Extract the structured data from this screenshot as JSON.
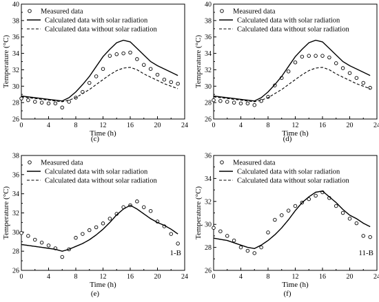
{
  "legend_labels": {
    "measured": "Measured data",
    "with_solar": "Calculated data with solar radiation",
    "without_solar": "Calculated data without solar radiation"
  },
  "chart_data": [
    {
      "type": "scatter+line",
      "panel_label": "(c)",
      "corner_label": "",
      "xlabel": "Time (h)",
      "ylabel": "Temperature (°C)",
      "xlim": [
        0,
        24
      ],
      "ylim": [
        26,
        40
      ],
      "xticks": [
        0,
        4,
        8,
        12,
        16,
        20,
        24
      ],
      "yticks": [
        26,
        28,
        30,
        32,
        34,
        36,
        38,
        40
      ],
      "legend_position": "top-left",
      "series": [
        {
          "name": "Measured data",
          "style": "circle",
          "x": [
            0,
            1,
            2,
            3,
            4,
            5,
            6,
            7,
            8,
            9,
            10,
            11,
            12,
            13,
            14,
            15,
            16,
            17,
            18,
            19,
            20,
            21,
            22,
            23
          ],
          "y": [
            28.5,
            28.3,
            28.1,
            28.0,
            27.9,
            27.9,
            27.4,
            28.1,
            28.6,
            29.3,
            30.4,
            31.2,
            32.1,
            33.7,
            33.9,
            34.0,
            34.1,
            33.3,
            32.6,
            32.1,
            31.4,
            30.8,
            30.5,
            30.3
          ]
        },
        {
          "name": "Calculated data with solar radiation",
          "style": "solid",
          "x": [
            0,
            1,
            2,
            3,
            4,
            5,
            6,
            7,
            8,
            9,
            10,
            11,
            12,
            13,
            14,
            15,
            16,
            17,
            18,
            19,
            20,
            21,
            22,
            23
          ],
          "y": [
            28.8,
            28.7,
            28.6,
            28.5,
            28.4,
            28.3,
            28.2,
            28.6,
            29.3,
            30.2,
            31.2,
            32.4,
            33.6,
            34.5,
            35.3,
            35.6,
            35.4,
            34.6,
            33.8,
            33.0,
            32.5,
            32.1,
            31.7,
            31.3
          ]
        },
        {
          "name": "Calculated data without solar radiation",
          "style": "dashed",
          "x": [
            0,
            1,
            2,
            3,
            4,
            5,
            6,
            7,
            8,
            9,
            10,
            11,
            12,
            13,
            14,
            15,
            16,
            17,
            18,
            19,
            20,
            21,
            22,
            23
          ],
          "y": [
            28.7,
            28.6,
            28.5,
            28.4,
            28.3,
            28.2,
            28.1,
            28.3,
            28.6,
            29.1,
            29.6,
            30.2,
            30.8,
            31.4,
            31.9,
            32.2,
            32.3,
            32.0,
            31.5,
            31.1,
            30.7,
            30.3,
            30.0,
            29.7
          ]
        }
      ]
    },
    {
      "type": "scatter+line",
      "panel_label": "(d)",
      "corner_label": "",
      "xlabel": "Time (h)",
      "ylabel": "Temperature (°C)",
      "xlim": [
        0,
        24
      ],
      "ylim": [
        26,
        40
      ],
      "xticks": [
        0,
        4,
        8,
        12,
        16,
        20,
        24
      ],
      "yticks": [
        26,
        28,
        30,
        32,
        34,
        36,
        38,
        40
      ],
      "legend_position": "top-left",
      "series": [
        {
          "name": "Measured data",
          "style": "circle",
          "x": [
            0,
            1,
            2,
            3,
            4,
            5,
            6,
            7,
            8,
            9,
            10,
            11,
            12,
            13,
            14,
            15,
            16,
            17,
            18,
            19,
            20,
            21,
            22,
            23
          ],
          "y": [
            28.3,
            28.2,
            28.1,
            28.0,
            27.9,
            27.9,
            27.7,
            28.2,
            28.7,
            30.1,
            31.0,
            31.8,
            32.9,
            33.6,
            33.7,
            33.7,
            33.7,
            33.5,
            32.8,
            32.2,
            31.6,
            31.0,
            30.4,
            29.8
          ]
        },
        {
          "name": "Calculated data with solar radiation",
          "style": "solid",
          "x": [
            0,
            1,
            2,
            3,
            4,
            5,
            6,
            7,
            8,
            9,
            10,
            11,
            12,
            13,
            14,
            15,
            16,
            17,
            18,
            19,
            20,
            21,
            22,
            23
          ],
          "y": [
            28.8,
            28.7,
            28.6,
            28.5,
            28.4,
            28.3,
            28.2,
            28.6,
            29.3,
            30.2,
            31.2,
            32.4,
            33.6,
            34.5,
            35.3,
            35.6,
            35.4,
            34.6,
            33.8,
            33.0,
            32.5,
            32.1,
            31.7,
            31.3
          ]
        },
        {
          "name": "Calculated data without solar radiation",
          "style": "dashed",
          "x": [
            0,
            1,
            2,
            3,
            4,
            5,
            6,
            7,
            8,
            9,
            10,
            11,
            12,
            13,
            14,
            15,
            16,
            17,
            18,
            19,
            20,
            21,
            22,
            23
          ],
          "y": [
            28.7,
            28.6,
            28.5,
            28.4,
            28.3,
            28.2,
            28.1,
            28.3,
            28.6,
            29.1,
            29.6,
            30.2,
            30.8,
            31.4,
            31.9,
            32.2,
            32.3,
            32.0,
            31.5,
            31.1,
            30.7,
            30.3,
            30.0,
            29.7
          ]
        }
      ]
    },
    {
      "type": "scatter+line",
      "panel_label": "(e)",
      "corner_label": "1-B",
      "xlabel": "Time (h)",
      "ylabel": "Temperature (°C)",
      "xlim": [
        0,
        24
      ],
      "ylim": [
        26,
        38
      ],
      "xticks": [
        0,
        4,
        8,
        12,
        16,
        20,
        24
      ],
      "yticks": [
        26,
        28,
        30,
        32,
        34,
        36,
        38
      ],
      "legend_position": "top-left",
      "series": [
        {
          "name": "Measured data",
          "style": "circle",
          "x": [
            0,
            1,
            2,
            3,
            4,
            5,
            6,
            7,
            8,
            9,
            10,
            11,
            12,
            13,
            14,
            15,
            16,
            17,
            18,
            19,
            20,
            21,
            22,
            23
          ],
          "y": [
            29.9,
            29.6,
            29.2,
            28.9,
            28.6,
            28.3,
            27.4,
            28.2,
            29.4,
            29.8,
            30.2,
            30.5,
            30.9,
            31.4,
            31.9,
            32.6,
            32.8,
            33.2,
            32.6,
            32.2,
            31.1,
            30.6,
            29.8,
            28.8
          ]
        },
        {
          "name": "Calculated data with solar radiation",
          "style": "solid",
          "x": [
            0,
            1,
            2,
            3,
            4,
            5,
            6,
            7,
            8,
            9,
            10,
            11,
            12,
            13,
            14,
            15,
            16,
            17,
            18,
            19,
            20,
            21,
            22,
            23
          ],
          "y": [
            28.7,
            28.6,
            28.5,
            28.4,
            28.3,
            28.2,
            28.0,
            28.2,
            28.5,
            28.8,
            29.2,
            29.7,
            30.3,
            31.0,
            31.8,
            32.4,
            32.8,
            32.4,
            31.9,
            31.4,
            31.0,
            30.7,
            30.3,
            29.8
          ]
        },
        {
          "name": "Calculated data without solar radiation",
          "style": "dashed",
          "x": [
            0,
            1,
            2,
            3,
            4,
            5,
            6,
            7,
            8,
            9,
            10,
            11,
            12,
            13,
            14,
            15,
            16,
            17,
            18,
            19,
            20,
            21,
            22,
            23
          ],
          "y": [
            28.7,
            28.6,
            28.5,
            28.4,
            28.3,
            28.2,
            28.0,
            28.2,
            28.5,
            28.8,
            29.2,
            29.7,
            30.3,
            31.0,
            31.8,
            32.4,
            32.8,
            32.4,
            31.9,
            31.4,
            31.0,
            30.7,
            30.3,
            29.8
          ]
        }
      ]
    },
    {
      "type": "scatter+line",
      "panel_label": "(f)",
      "corner_label": "11-B",
      "xlabel": "Time (h)",
      "ylabel": "Temperature (°C)",
      "xlim": [
        0,
        24
      ],
      "ylim": [
        26,
        36
      ],
      "xticks": [
        0,
        4,
        8,
        12,
        16,
        20,
        24
      ],
      "yticks": [
        26,
        28,
        30,
        32,
        34,
        36
      ],
      "legend_position": "top-left",
      "series": [
        {
          "name": "Measured data",
          "style": "circle",
          "x": [
            0,
            1,
            2,
            3,
            4,
            5,
            6,
            7,
            8,
            9,
            10,
            11,
            12,
            13,
            14,
            15,
            16,
            17,
            18,
            19,
            20,
            21,
            22,
            23
          ],
          "y": [
            29.7,
            29.4,
            29.0,
            28.6,
            28.0,
            27.7,
            27.5,
            28.0,
            29.3,
            30.4,
            30.8,
            31.2,
            31.6,
            31.9,
            32.2,
            32.5,
            32.8,
            32.3,
            31.6,
            31.0,
            30.5,
            30.1,
            29.0,
            28.9
          ]
        },
        {
          "name": "Calculated data with solar radiation",
          "style": "solid",
          "x": [
            0,
            1,
            2,
            3,
            4,
            5,
            6,
            7,
            8,
            9,
            10,
            11,
            12,
            13,
            14,
            15,
            16,
            17,
            18,
            19,
            20,
            21,
            22,
            23
          ],
          "y": [
            28.8,
            28.7,
            28.6,
            28.4,
            28.2,
            28.0,
            27.9,
            28.2,
            28.6,
            29.1,
            29.7,
            30.4,
            31.2,
            31.9,
            32.4,
            32.8,
            32.9,
            32.4,
            31.9,
            31.3,
            30.8,
            30.5,
            30.1,
            29.8
          ]
        },
        {
          "name": "Calculated data without solar radiation",
          "style": "dashed",
          "x": [
            0,
            1,
            2,
            3,
            4,
            5,
            6,
            7,
            8,
            9,
            10,
            11,
            12,
            13,
            14,
            15,
            16,
            17,
            18,
            19,
            20,
            21,
            22,
            23
          ],
          "y": [
            28.8,
            28.7,
            28.6,
            28.4,
            28.2,
            28.0,
            27.9,
            28.2,
            28.6,
            29.1,
            29.7,
            30.4,
            31.2,
            31.9,
            32.4,
            32.8,
            32.9,
            32.4,
            31.9,
            31.3,
            30.8,
            30.5,
            30.1,
            29.8
          ]
        }
      ]
    }
  ]
}
